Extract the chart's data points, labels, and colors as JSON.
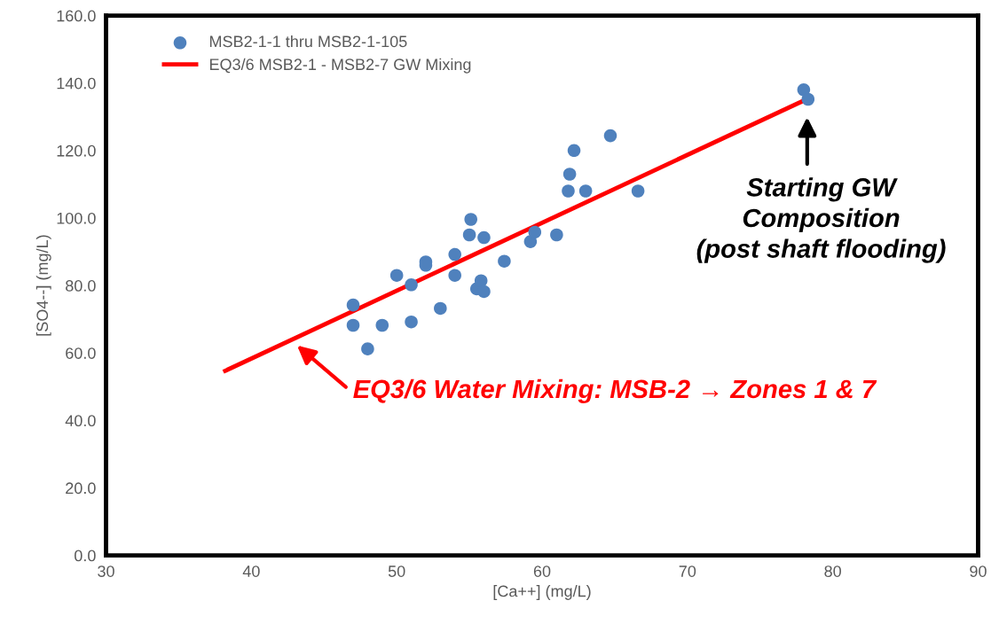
{
  "chart_data": {
    "type": "scatter",
    "xlabel": "[Ca++] (mg/L)",
    "ylabel": "[SO4--] (mg/L)",
    "xlim": [
      30,
      90
    ],
    "xticks": [
      30,
      40,
      50,
      60,
      70,
      80,
      90
    ],
    "ylim": [
      0,
      160
    ],
    "yticks": [
      {
        "value": 0,
        "label": "0.0"
      },
      {
        "value": 20,
        "label": "20.0"
      },
      {
        "value": 40,
        "label": "40.0"
      },
      {
        "value": 60,
        "label": "60.0"
      },
      {
        "value": 80,
        "label": "80.0"
      },
      {
        "value": 100,
        "label": "100.0"
      },
      {
        "value": 120,
        "label": "120.0"
      },
      {
        "value": 140,
        "label": "140.0"
      },
      {
        "value": 160,
        "label": "160.0"
      }
    ],
    "grid": false,
    "legend": "top left",
    "marker": "circle",
    "series": [
      {
        "name": "MSB2-1-1 thru MSB2-1-105",
        "color": "#4f81bd",
        "x": [
          47.0,
          47.0,
          48.0,
          49.0,
          50.0,
          51.0,
          51.0,
          52.0,
          52.0,
          53.0,
          54.0,
          54.0,
          55.1,
          55.0,
          55.5,
          55.8,
          56.0,
          56.0,
          57.4,
          59.2,
          59.5,
          61.0,
          61.8,
          61.9,
          62.2,
          63.0,
          64.7,
          66.6,
          78.0,
          78.3
        ],
        "values": [
          74.2,
          68.2,
          61.2,
          68.2,
          83.0,
          80.2,
          69.2,
          87.0,
          86.0,
          73.2,
          89.2,
          83.0,
          99.6,
          95.0,
          79.0,
          81.4,
          78.2,
          94.2,
          87.2,
          93.0,
          95.8,
          95.0,
          108.0,
          113.0,
          120.0,
          108.0,
          124.4,
          108.0,
          138.0,
          135.2
        ]
      },
      {
        "name": "EQ3/6 MSB2-1 - MSB2-7 GW Mixing",
        "type": "line",
        "color": "#ff0000",
        "marker": "none",
        "x": [
          38.2,
          78.0
        ],
        "values": [
          54.7,
          134.8
        ]
      }
    ],
    "annotations": [
      "Starting GW\nComposition\n(post shaft flooding)",
      "EQ3/6 Water Mixing: MSB-2 → Zones 1 & 7"
    ]
  }
}
